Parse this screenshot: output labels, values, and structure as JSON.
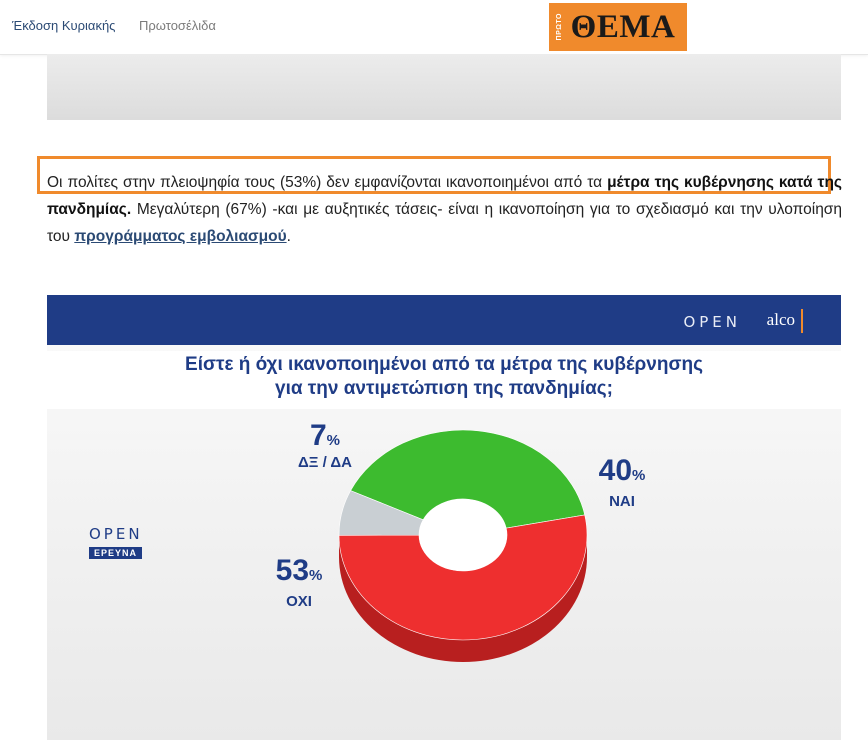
{
  "nav": {
    "sunday_edition": "Έκδοση Κυριακής",
    "front_pages": "Πρωτοσέλιδα"
  },
  "logo": {
    "small": "ΠΡΩΤΟ",
    "main": "ΘΕΜΑ",
    "background": "#f08a2c"
  },
  "article": {
    "p1_normal": "Οι πολίτες στην πλειοψηφία τους (53%) δεν εμφανίζονται ικανοποιημένοι από τα ",
    "p1_bold": "μέτρα της κυβέρνησης κατά της πανδημίας.",
    "p2_normal": " Μεγαλύτερη (67%) -και με αυξητικές τάσεις- είναι η ικανοποίηση για το σχεδιασμό και την υλοποίηση του ",
    "p2_link": "προγράμματος εμβολιασμού",
    "p2_end": "."
  },
  "chart_branding": {
    "open": "OPEN",
    "alco": "alco",
    "research": "ΕΡΕΥΝΑ"
  },
  "chart_data": {
    "type": "pie",
    "title_line1": "Είστε ή όχι ικανοποιημένοι από τα μέτρα της κυβέρνησης",
    "title_line2": "για την αντιμετώπιση της πανδημίας;",
    "slices": [
      {
        "label": "ΝΑΙ",
        "value": 40,
        "color": "#3dbb2f",
        "shade": "#2c8f22"
      },
      {
        "label": "ΟΧΙ",
        "value": 53,
        "color": "#ee2f2f",
        "shade": "#b81f1f"
      },
      {
        "label": "ΔΞ / ΔΑ",
        "value": 7,
        "color": "#c9cfd3",
        "shade": "#9aa2a8"
      }
    ],
    "unit": "%",
    "donut": true
  }
}
